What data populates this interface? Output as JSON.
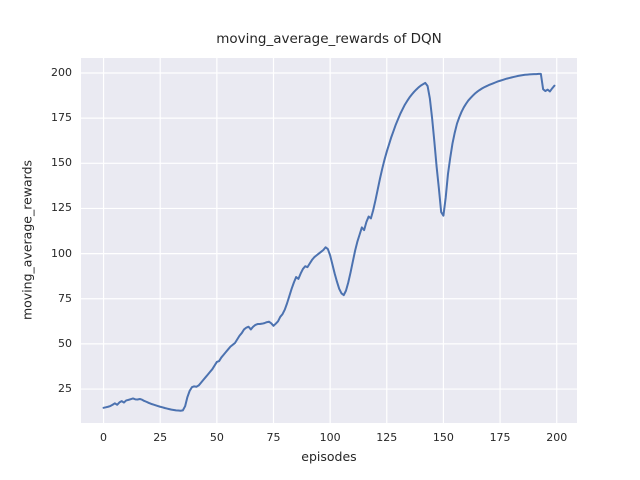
{
  "chart_data": {
    "type": "line",
    "title": "moving_average_rewards of DQN",
    "xlabel": "episodes",
    "ylabel": "moving_average_rewards",
    "x_ticks": [
      0,
      25,
      50,
      75,
      100,
      125,
      150,
      175,
      200
    ],
    "y_ticks": [
      25,
      50,
      75,
      100,
      125,
      150,
      175,
      200
    ],
    "xlim": [
      -9.95,
      208.95
    ],
    "ylim": [
      6.2,
      208.3
    ],
    "grid": true,
    "legend": "none",
    "style": "seaborn-darkgrid",
    "colors": {
      "line": "#4c72b0",
      "plot_bg": "#eaeaf2",
      "grid": "#ffffff",
      "text": "#262626",
      "figure_bg": "#ffffff"
    },
    "line_width": 2,
    "series": [
      {
        "name": "moving_average_rewards",
        "x_start": 0,
        "x_step": 1,
        "values": [
          14.6,
          14.9,
          15.2,
          15.6,
          16.3,
          17.1,
          16.3,
          17.6,
          18.3,
          17.5,
          18.7,
          19.0,
          19.4,
          19.8,
          19.3,
          19.2,
          19.5,
          19.1,
          18.4,
          17.9,
          17.3,
          16.8,
          16.4,
          16.0,
          15.6,
          15.2,
          14.9,
          14.5,
          14.2,
          13.9,
          13.6,
          13.4,
          13.2,
          13.1,
          13.0,
          13.2,
          15.5,
          20.5,
          24.0,
          26.0,
          26.5,
          26.3,
          27.0,
          28.5,
          30.0,
          31.5,
          33.0,
          34.5,
          36.0,
          38.0,
          40.0,
          40.5,
          42.5,
          44.0,
          45.5,
          47.0,
          48.5,
          49.5,
          50.5,
          52.5,
          54.5,
          56.0,
          58.0,
          59.0,
          59.5,
          58.0,
          59.5,
          60.5,
          61.0,
          61.0,
          61.2,
          61.5,
          62.0,
          62.3,
          61.4,
          60.0,
          61.2,
          62.5,
          65.0,
          66.5,
          69.0,
          72.5,
          76.5,
          80.5,
          84.0,
          87.0,
          86.0,
          89.0,
          91.5,
          93.0,
          92.5,
          94.5,
          96.5,
          98.0,
          99.0,
          100.0,
          101.0,
          102.0,
          103.5,
          102.5,
          99.0,
          94.0,
          89.0,
          84.5,
          80.5,
          78.0,
          77.0,
          79.5,
          84.0,
          89.5,
          95.5,
          101.5,
          106.5,
          110.5,
          114.5,
          113.0,
          117.5,
          120.5,
          119.5,
          124.0,
          129.5,
          135.5,
          141.5,
          147.0,
          152.0,
          156.5,
          160.5,
          164.5,
          168.0,
          171.5,
          174.5,
          177.5,
          180.0,
          182.5,
          184.5,
          186.4,
          188.0,
          189.5,
          190.8,
          192.0,
          193.0,
          193.8,
          194.5,
          192.8,
          186.0,
          175.0,
          162.0,
          148.0,
          136.0,
          123.0,
          121.0,
          131.0,
          144.0,
          153.0,
          161.0,
          167.0,
          172.0,
          175.5,
          178.5,
          181.0,
          183.0,
          184.8,
          186.2,
          187.5,
          188.7,
          189.7,
          190.6,
          191.4,
          192.1,
          192.7,
          193.3,
          193.8,
          194.3,
          194.8,
          195.3,
          195.7,
          196.1,
          196.5,
          196.9,
          197.2,
          197.5,
          197.8,
          198.1,
          198.4,
          198.6,
          198.8,
          199.0,
          199.1,
          199.2,
          199.3,
          199.4,
          199.4,
          199.5,
          199.5,
          191.0,
          190.0,
          190.8,
          189.8,
          191.5,
          193.0
        ]
      }
    ]
  }
}
